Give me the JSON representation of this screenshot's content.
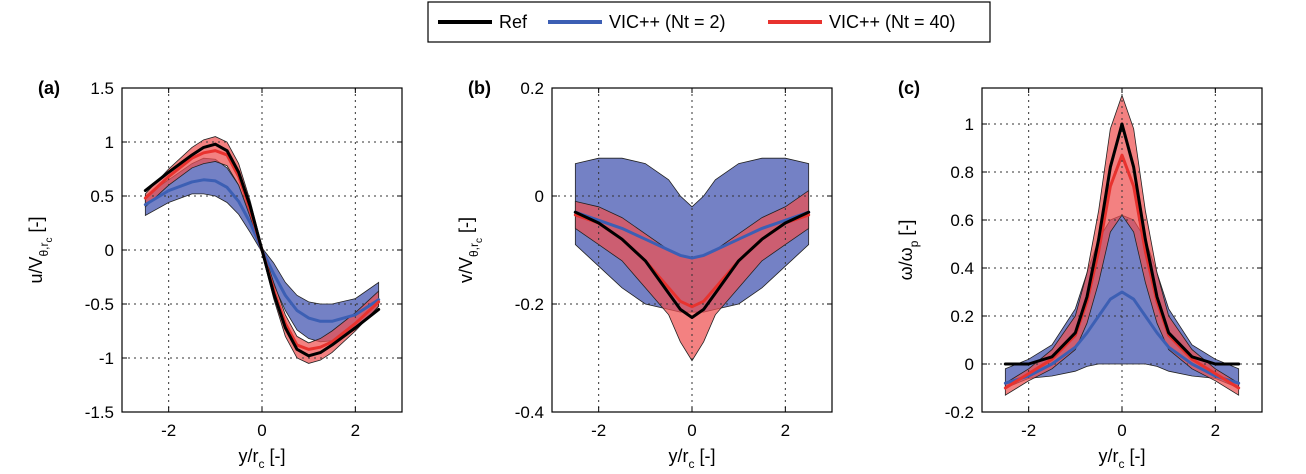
{
  "legend": {
    "entries": [
      {
        "label": "Ref",
        "color": "#000000"
      },
      {
        "label": "VIC++ (Nt = 2)",
        "color": "#3c5fb4"
      },
      {
        "label": "VIC++ (Nt = 40)",
        "color": "#e8322e"
      }
    ]
  },
  "colors": {
    "ref": "#000000",
    "nt2_line": "#3c5fb4",
    "nt2_band": "#4d5db5",
    "nt40_line": "#e8322e",
    "nt40_band": "#ee5050"
  },
  "chart_data": [
    {
      "type": "line",
      "panel_label": "(a)",
      "xlabel": "y/r",
      "xlabel_sub": "c",
      "xlabel_unit": " [-]",
      "ylabel": "u/V",
      "ylabel_sub": "θ,r",
      "ylabel_subsub": "c",
      "ylabel_unit": " [-]",
      "xlim": [
        -3,
        3
      ],
      "ylim": [
        -1.5,
        1.5
      ],
      "xticks": [
        -2,
        0,
        2
      ],
      "yticks": [
        -1.5,
        -1,
        -0.5,
        0,
        0.5,
        1,
        1.5
      ],
      "grid": true,
      "x": [
        -2.5,
        -2.0,
        -1.5,
        -1.25,
        -1.0,
        -0.75,
        -0.5,
        -0.25,
        0,
        0.25,
        0.5,
        0.75,
        1.0,
        1.25,
        1.5,
        2.0,
        2.5
      ],
      "series": [
        {
          "name": "Ref",
          "values": [
            0.55,
            0.72,
            0.88,
            0.95,
            0.98,
            0.92,
            0.72,
            0.4,
            0.0,
            -0.4,
            -0.72,
            -0.92,
            -0.98,
            -0.95,
            -0.88,
            -0.72,
            -0.55
          ]
        },
        {
          "name": "VIC++ (Nt = 2)",
          "values": [
            0.42,
            0.55,
            0.63,
            0.65,
            0.64,
            0.58,
            0.45,
            0.25,
            0.0,
            -0.22,
            -0.42,
            -0.56,
            -0.63,
            -0.66,
            -0.66,
            -0.6,
            -0.46
          ],
          "band_upper": [
            0.5,
            0.65,
            0.8,
            0.85,
            0.84,
            0.76,
            0.6,
            0.33,
            0.02,
            -0.12,
            -0.3,
            -0.42,
            -0.48,
            -0.5,
            -0.5,
            -0.45,
            -0.3
          ],
          "band_lower": [
            0.32,
            0.44,
            0.52,
            0.52,
            0.5,
            0.44,
            0.33,
            0.16,
            -0.02,
            -0.32,
            -0.56,
            -0.74,
            -0.82,
            -0.85,
            -0.84,
            -0.74,
            -0.52
          ]
        },
        {
          "name": "VIC++ (Nt = 40)",
          "values": [
            0.48,
            0.68,
            0.85,
            0.9,
            0.92,
            0.88,
            0.68,
            0.37,
            0.0,
            -0.37,
            -0.68,
            -0.88,
            -0.92,
            -0.9,
            -0.85,
            -0.68,
            -0.48
          ],
          "band_upper": [
            0.52,
            0.75,
            0.95,
            1.02,
            1.05,
            1.0,
            0.8,
            0.45,
            0.03,
            -0.3,
            -0.6,
            -0.8,
            -0.86,
            -0.82,
            -0.75,
            -0.58,
            -0.38
          ],
          "band_lower": [
            0.4,
            0.6,
            0.76,
            0.8,
            0.82,
            0.78,
            0.6,
            0.3,
            -0.03,
            -0.45,
            -0.8,
            -1.0,
            -1.05,
            -1.02,
            -0.95,
            -0.75,
            -0.52
          ]
        }
      ]
    },
    {
      "type": "line",
      "panel_label": "(b)",
      "xlabel": "y/r",
      "xlabel_sub": "c",
      "xlabel_unit": " [-]",
      "ylabel": "v/V",
      "ylabel_sub": "θ,r",
      "ylabel_subsub": "c",
      "ylabel_unit": " [-]",
      "xlim": [
        -3,
        3
      ],
      "ylim": [
        -0.4,
        0.2
      ],
      "xticks": [
        -2,
        0,
        2
      ],
      "yticks": [
        -0.4,
        -0.2,
        0,
        0.2
      ],
      "grid": true,
      "x": [
        -2.5,
        -2.0,
        -1.5,
        -1.0,
        -0.5,
        -0.25,
        0,
        0.25,
        0.5,
        1.0,
        1.5,
        2.0,
        2.5
      ],
      "series": [
        {
          "name": "Ref",
          "values": [
            -0.03,
            -0.05,
            -0.08,
            -0.12,
            -0.18,
            -0.21,
            -0.225,
            -0.21,
            -0.18,
            -0.12,
            -0.08,
            -0.05,
            -0.03
          ]
        },
        {
          "name": "VIC++ (Nt = 2)",
          "values": [
            -0.03,
            -0.045,
            -0.06,
            -0.08,
            -0.1,
            -0.11,
            -0.115,
            -0.11,
            -0.1,
            -0.08,
            -0.06,
            -0.045,
            -0.03
          ],
          "band_upper": [
            0.06,
            0.07,
            0.07,
            0.06,
            0.03,
            0.0,
            -0.02,
            0.0,
            0.03,
            0.06,
            0.07,
            0.07,
            0.06
          ],
          "band_lower": [
            -0.09,
            -0.13,
            -0.17,
            -0.2,
            -0.21,
            -0.215,
            -0.215,
            -0.215,
            -0.21,
            -0.2,
            -0.17,
            -0.13,
            -0.09
          ]
        },
        {
          "name": "VIC++ (Nt = 40)",
          "values": [
            -0.035,
            -0.05,
            -0.08,
            -0.12,
            -0.17,
            -0.195,
            -0.205,
            -0.195,
            -0.17,
            -0.12,
            -0.08,
            -0.05,
            -0.035
          ],
          "band_upper": [
            -0.01,
            -0.02,
            -0.04,
            -0.07,
            -0.1,
            -0.11,
            -0.115,
            -0.11,
            -0.1,
            -0.07,
            -0.04,
            -0.02,
            0.01
          ],
          "band_lower": [
            -0.06,
            -0.09,
            -0.12,
            -0.17,
            -0.22,
            -0.27,
            -0.305,
            -0.27,
            -0.22,
            -0.17,
            -0.12,
            -0.09,
            -0.06
          ]
        }
      ]
    },
    {
      "type": "line",
      "panel_label": "(c)",
      "xlabel": "y/r",
      "xlabel_sub": "c",
      "xlabel_unit": " [-]",
      "ylabel": "ω/ω",
      "ylabel_sub": "p",
      "ylabel_subsub": "",
      "ylabel_unit": " [-]",
      "xlim": [
        -3,
        3
      ],
      "ylim": [
        -0.2,
        1.15
      ],
      "xticks": [
        -2,
        0,
        2
      ],
      "yticks": [
        -0.2,
        0,
        0.2,
        0.4,
        0.6,
        0.8,
        1
      ],
      "grid": true,
      "x": [
        -2.5,
        -2.0,
        -1.5,
        -1.0,
        -0.75,
        -0.5,
        -0.25,
        0,
        0.25,
        0.5,
        0.75,
        1.0,
        1.5,
        2.0,
        2.5
      ],
      "series": [
        {
          "name": "Ref",
          "values": [
            0.0,
            0.0,
            0.03,
            0.13,
            0.28,
            0.52,
            0.82,
            1.0,
            0.82,
            0.52,
            0.28,
            0.13,
            0.03,
            0.0,
            0.0
          ]
        },
        {
          "name": "VIC++ (Nt = 2)",
          "values": [
            -0.08,
            -0.05,
            0.0,
            0.07,
            0.13,
            0.2,
            0.27,
            0.3,
            0.27,
            0.2,
            0.13,
            0.07,
            0.0,
            -0.05,
            -0.08
          ],
          "band_upper": [
            -0.02,
            0.02,
            0.08,
            0.23,
            0.38,
            0.52,
            0.6,
            0.62,
            0.6,
            0.52,
            0.38,
            0.23,
            0.08,
            0.02,
            -0.02
          ],
          "band_lower": [
            -0.1,
            -0.06,
            -0.05,
            -0.03,
            -0.01,
            0.0,
            0.0,
            0.0,
            0.0,
            0.0,
            -0.01,
            -0.03,
            -0.05,
            -0.06,
            -0.1
          ]
        },
        {
          "name": "VIC++ (Nt = 40)",
          "values": [
            -0.1,
            -0.04,
            0.02,
            0.12,
            0.26,
            0.47,
            0.74,
            0.87,
            0.74,
            0.47,
            0.26,
            0.12,
            0.02,
            -0.04,
            -0.1
          ],
          "band_upper": [
            -0.08,
            -0.02,
            0.06,
            0.2,
            0.38,
            0.64,
            0.98,
            1.12,
            0.98,
            0.64,
            0.38,
            0.2,
            0.06,
            -0.02,
            -0.08
          ],
          "band_lower": [
            -0.13,
            -0.07,
            -0.02,
            0.06,
            0.17,
            0.34,
            0.55,
            0.62,
            0.55,
            0.34,
            0.17,
            0.06,
            -0.02,
            -0.07,
            -0.13
          ]
        }
      ]
    }
  ]
}
